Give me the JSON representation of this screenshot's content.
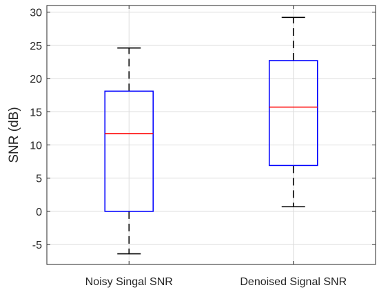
{
  "chart_data": {
    "type": "boxplot",
    "title": "",
    "xlabel": "",
    "ylabel": "SNR (dB)",
    "ylim": [
      -8,
      31
    ],
    "yticks": [
      -5,
      0,
      5,
      10,
      15,
      20,
      25,
      30
    ],
    "ytick_labels": [
      "-5",
      "0",
      "5",
      "10",
      "15",
      "20",
      "25",
      "30"
    ],
    "grid": true,
    "categories": [
      "Noisy Singal SNR",
      "Denoised Signal SNR"
    ],
    "boxes": [
      {
        "category": "Noisy Singal SNR",
        "whisker_low": -6.4,
        "q1": 0.0,
        "median": 11.7,
        "q3": 18.1,
        "whisker_high": 24.6
      },
      {
        "category": "Denoised Signal SNR",
        "whisker_low": 0.7,
        "q1": 6.9,
        "median": 15.7,
        "q3": 22.7,
        "whisker_high": 29.2
      }
    ],
    "colors": {
      "box": "#0000ff",
      "median": "#ff0000",
      "whisker": "#000000",
      "grid": "#dcdcdc",
      "axis": "#262626"
    }
  }
}
